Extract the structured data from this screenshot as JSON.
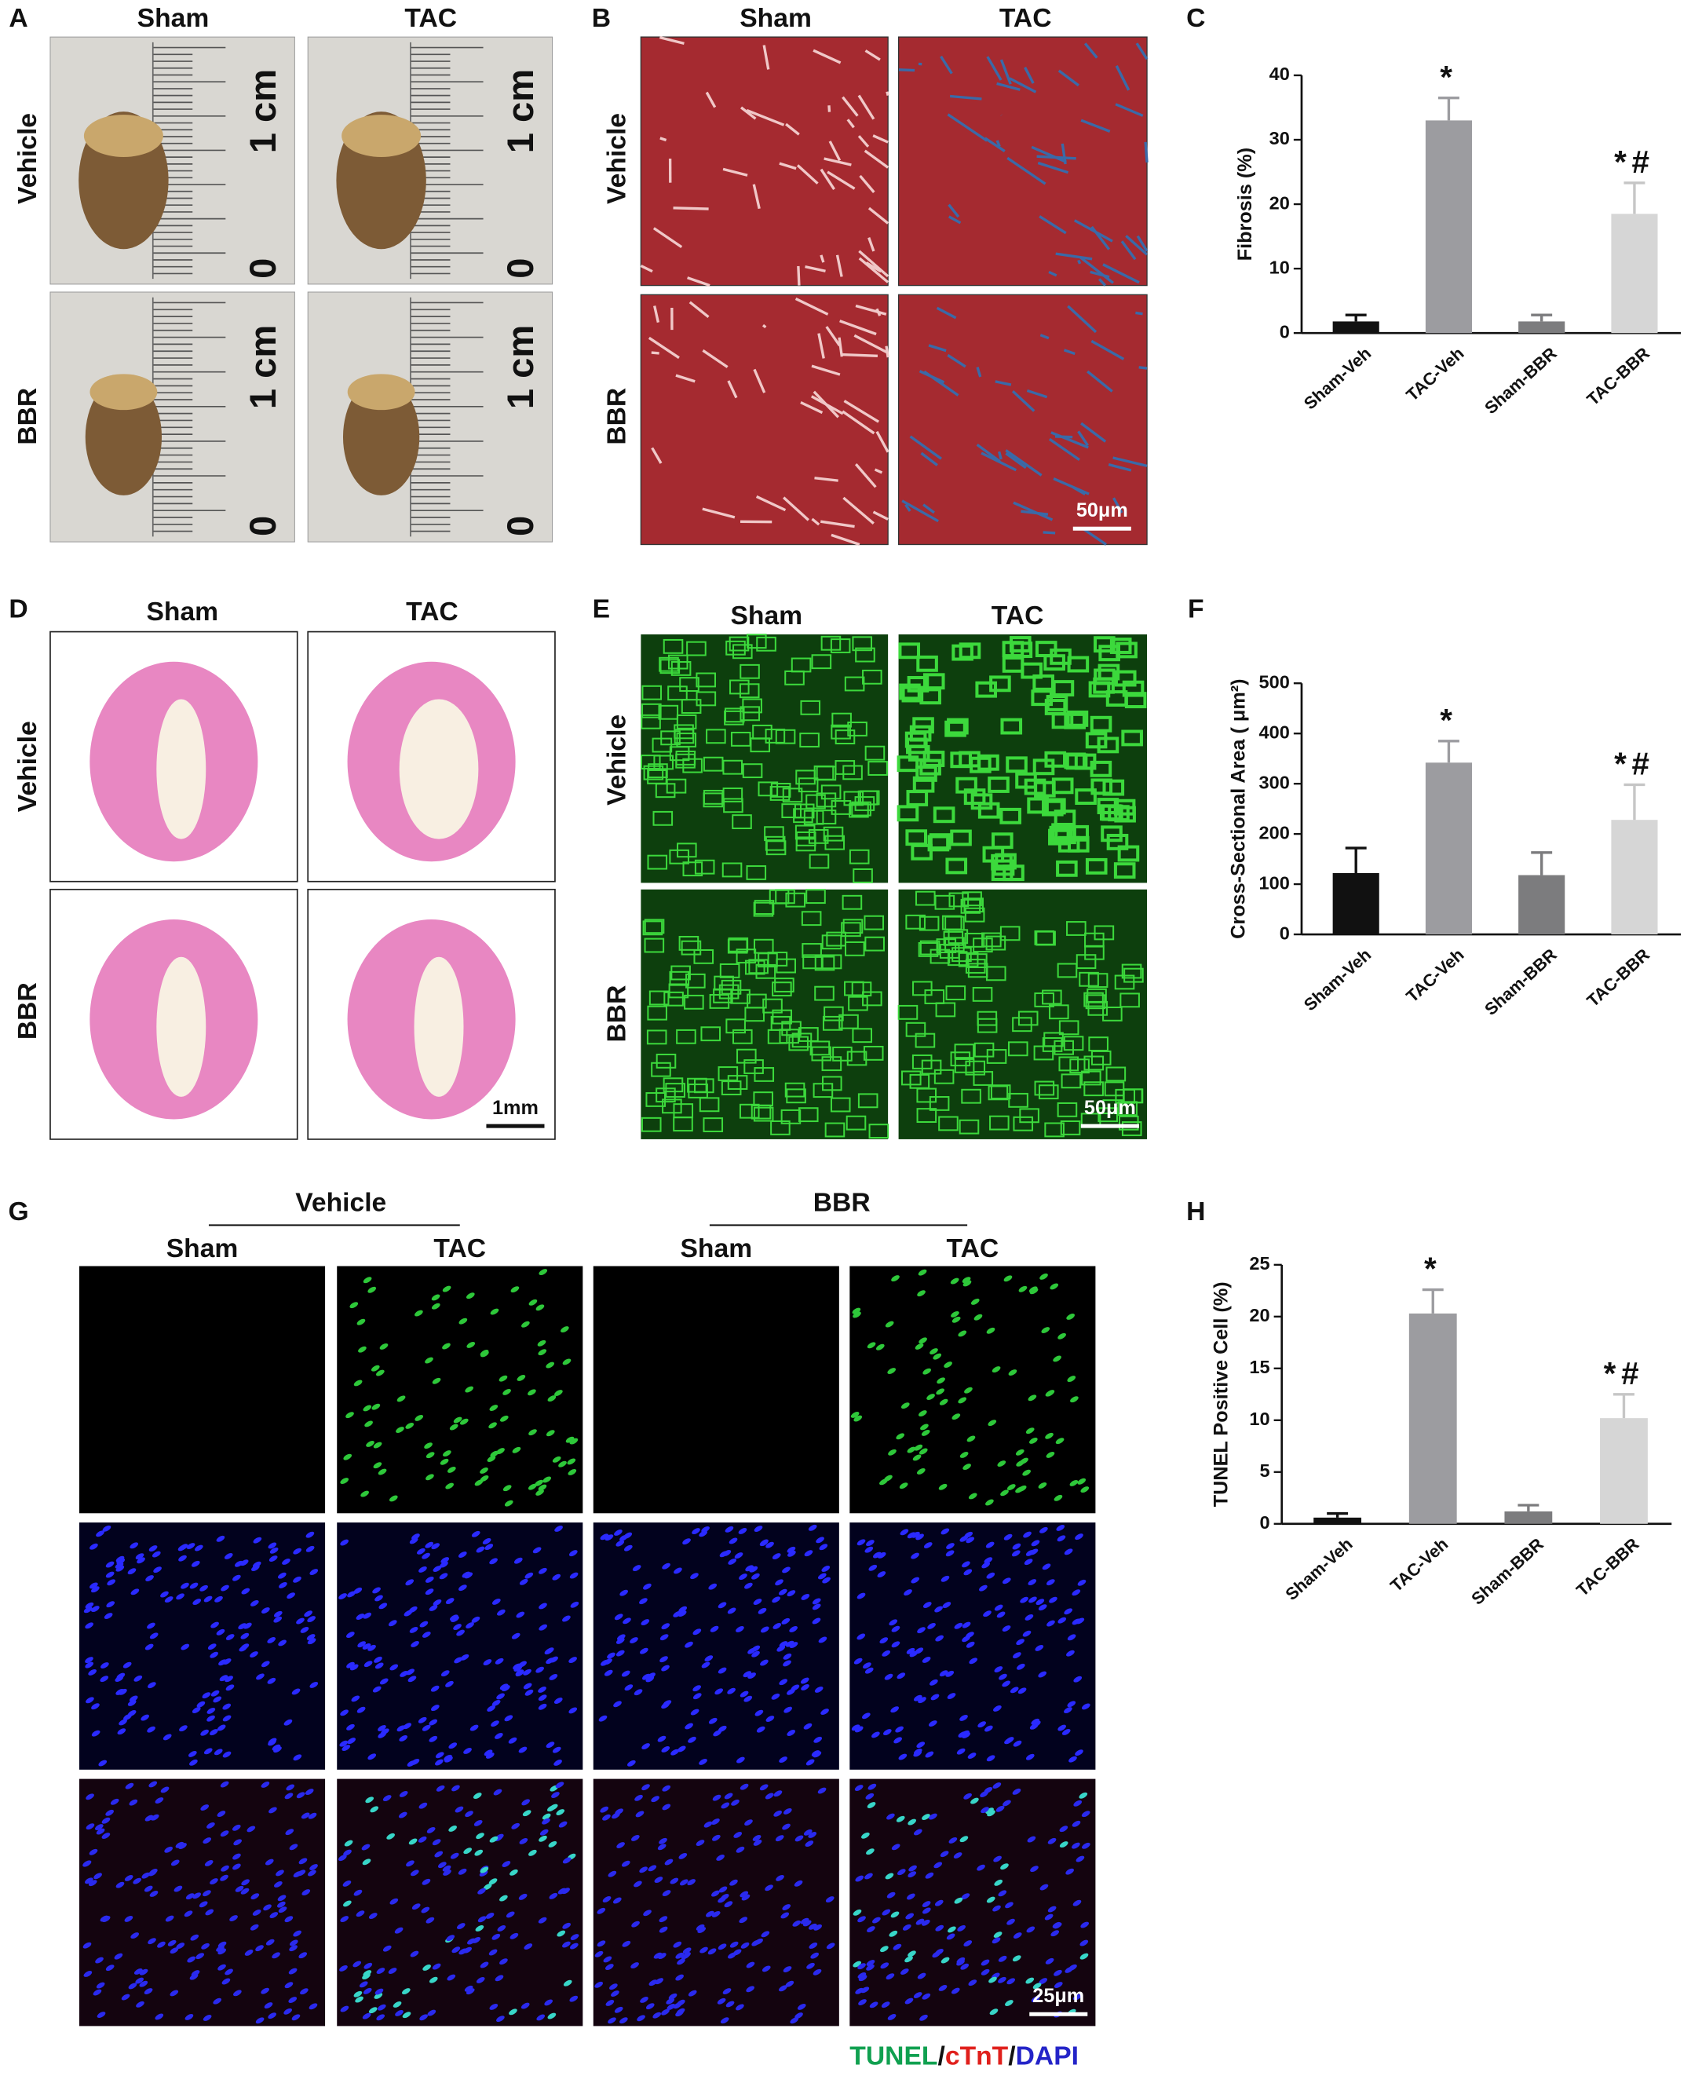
{
  "panels": {
    "A": {
      "label": "A",
      "columns": [
        "Sham",
        "TAC"
      ],
      "rows": [
        "Vehicle",
        "BBR"
      ],
      "ruler": [
        "1 cm",
        "0"
      ]
    },
    "B": {
      "label": "B",
      "columns": [
        "Sham",
        "TAC"
      ],
      "rows": [
        "Vehicle",
        "BBR"
      ],
      "scale_bar": "50μm"
    },
    "D": {
      "label": "D",
      "columns": [
        "Sham",
        "TAC"
      ],
      "rows": [
        "Vehicle",
        "BBR"
      ],
      "scale_bar": "1mm"
    },
    "E": {
      "label": "E",
      "columns": [
        "Sham",
        "TAC"
      ],
      "rows": [
        "Vehicle",
        "BBR"
      ],
      "scale_bar": "50μm"
    },
    "G": {
      "label": "G",
      "groups": [
        "Vehicle",
        "BBR"
      ],
      "columns": [
        "Sham",
        "TAC"
      ],
      "scale_bar": "25μm",
      "stain": [
        {
          "text": "TUNEL",
          "color": "#10a050"
        },
        {
          "text": "/",
          "color": "#111111"
        },
        {
          "text": "cTnT",
          "color": "#e0201c"
        },
        {
          "text": "/",
          "color": "#111111"
        },
        {
          "text": "DAPI",
          "color": "#2424c8"
        }
      ]
    }
  },
  "chart_data": [
    {
      "type": "bar",
      "label": "C",
      "ylabel": "Fibrosis (%)",
      "categories": [
        "Sham-Veh",
        "TAC-Veh",
        "Sham-BBR",
        "TAC-BBR"
      ],
      "values": [
        1.8,
        33,
        1.8,
        18.5
      ],
      "errors": [
        1,
        3.5,
        1,
        4.8
      ],
      "colors": [
        "#111111",
        "#9c9ca0",
        "#7c7c7e",
        "#d6d6d6"
      ],
      "ylim": [
        0,
        40
      ],
      "yticks": [
        0,
        10,
        20,
        30,
        40
      ],
      "annotations": [
        {
          "category": "TAC-Veh",
          "text": "*"
        },
        {
          "category": "TAC-BBR",
          "text": "*#"
        }
      ]
    },
    {
      "type": "bar",
      "label": "F",
      "ylabel": "Cross-Sectional Area ( μm²)",
      "categories": [
        "Sham-Veh",
        "TAC-Veh",
        "Sham-BBR",
        "TAC-BBR"
      ],
      "values": [
        122,
        342,
        118,
        228
      ],
      "errors": [
        50,
        43,
        45,
        70
      ],
      "colors": [
        "#111111",
        "#9c9ca0",
        "#7c7c7e",
        "#d6d6d6"
      ],
      "ylim": [
        0,
        500
      ],
      "yticks": [
        0,
        100,
        200,
        300,
        400,
        500
      ],
      "annotations": [
        {
          "category": "TAC-Veh",
          "text": "*"
        },
        {
          "category": "TAC-BBR",
          "text": "*#"
        }
      ]
    },
    {
      "type": "bar",
      "label": "H",
      "ylabel": "TUNEL Positive Cell (%)",
      "categories": [
        "Sham-Veh",
        "TAC-Veh",
        "Sham-BBR",
        "TAC-BBR"
      ],
      "values": [
        0.6,
        20.3,
        1.2,
        10.2
      ],
      "errors": [
        0.4,
        2.3,
        0.6,
        2.3
      ],
      "colors": [
        "#111111",
        "#9c9ca0",
        "#7c7c7e",
        "#d6d6d6"
      ],
      "ylim": [
        0,
        25
      ],
      "yticks": [
        0,
        5,
        10,
        15,
        20,
        25
      ],
      "annotations": [
        {
          "category": "TAC-Veh",
          "text": "*"
        },
        {
          "category": "TAC-BBR",
          "text": "*#"
        }
      ]
    }
  ]
}
